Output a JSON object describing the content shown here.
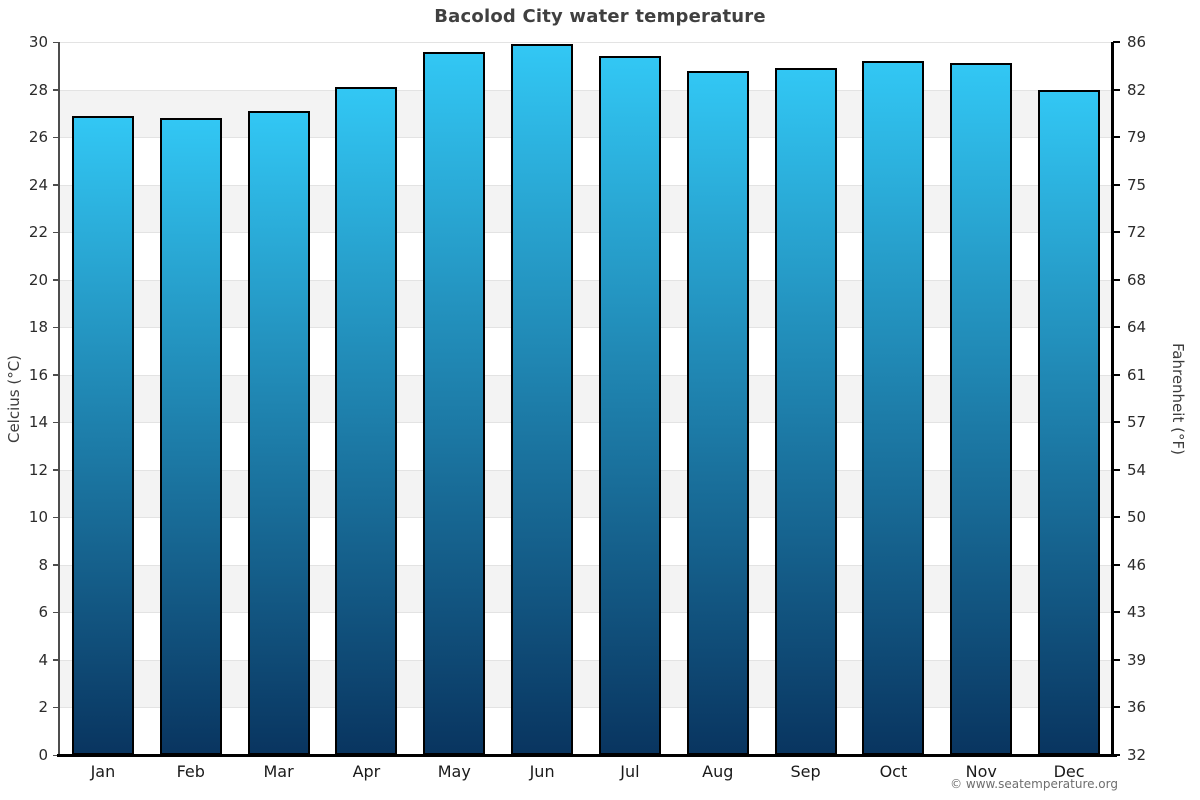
{
  "footer": {
    "copyright": "© www.seatemperature.org"
  },
  "chart_data": {
    "type": "bar",
    "title": "Bacolod City water temperature",
    "ylabel_left": "Celcius (°C)",
    "ylabel_right": "Fahrenheit (°F)",
    "categories": [
      "Jan",
      "Feb",
      "Mar",
      "Apr",
      "May",
      "Jun",
      "Jul",
      "Aug",
      "Sep",
      "Oct",
      "Nov",
      "Dec"
    ],
    "series": [
      {
        "name": "Water temperature (°C)",
        "values": [
          26.9,
          26.8,
          27.1,
          28.1,
          29.6,
          29.9,
          29.4,
          28.8,
          28.9,
          29.2,
          29.1,
          28.0
        ]
      }
    ],
    "ylim_celsius": [
      0,
      30
    ],
    "yticks": [
      {
        "c": "30",
        "f": "86"
      },
      {
        "c": "28",
        "f": "82"
      },
      {
        "c": "26",
        "f": "79"
      },
      {
        "c": "24",
        "f": "75"
      },
      {
        "c": "22",
        "f": "72"
      },
      {
        "c": "20",
        "f": "68"
      },
      {
        "c": "18",
        "f": "64"
      },
      {
        "c": "16",
        "f": "61"
      },
      {
        "c": "14",
        "f": "57"
      },
      {
        "c": "12",
        "f": "54"
      },
      {
        "c": "10",
        "f": "50"
      },
      {
        "c": "8",
        "f": "46"
      },
      {
        "c": "6",
        "f": "43"
      },
      {
        "c": "4",
        "f": "39"
      },
      {
        "c": "2",
        "f": "36"
      },
      {
        "c": "0",
        "f": "32"
      }
    ],
    "grid": "horizontal-bands-every-2C",
    "legend": "none",
    "colors": {
      "bar_top": "#32c7f4",
      "bar_bottom": "#093560",
      "bar_border": "#000000",
      "band_gray": "#f3f3f3",
      "band_white": "#ffffff",
      "gridline": "#e3e3e3",
      "left_axis": "#4d4d4d",
      "right_axis": "#000000",
      "bottom_axis": "#000000"
    }
  }
}
